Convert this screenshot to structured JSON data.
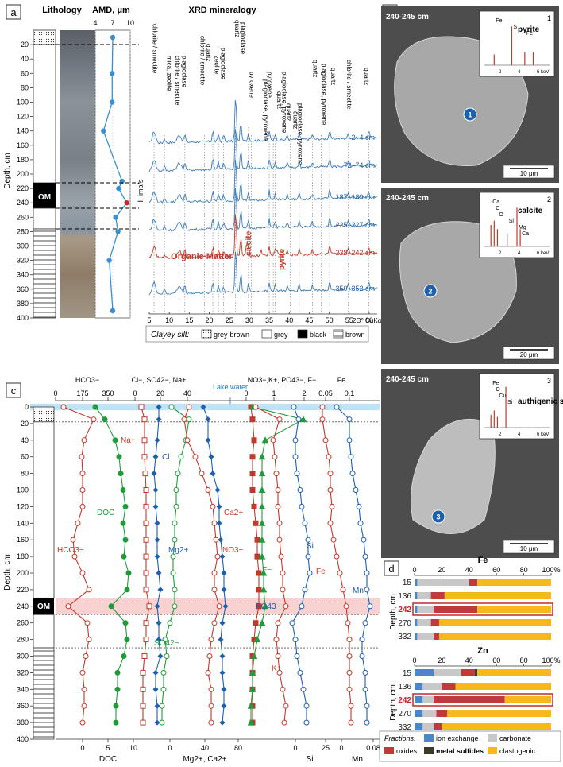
{
  "panel_a": {
    "letter": "a",
    "lithology_title": "Lithology",
    "amd_title": "AMD, μm",
    "amd_ticks": [
      "4",
      "7",
      "10"
    ],
    "xrd_title": "XRD mineralogy",
    "om_label": "OM",
    "depth_label": "Depth, cm",
    "depth_ticks": [
      "20",
      "40",
      "60",
      "80",
      "100",
      "120",
      "140",
      "160",
      "180",
      "200",
      "220",
      "240",
      "260",
      "280",
      "300",
      "320",
      "340",
      "360",
      "380",
      "400"
    ],
    "amd_data": {
      "depth": [
        10,
        60,
        100,
        140,
        210,
        220,
        240,
        260,
        280,
        320,
        390
      ],
      "amd": [
        7.0,
        6.9,
        6.9,
        5.4,
        8.6,
        8.0,
        9.4,
        7.5,
        7.9,
        6.4,
        7.0
      ],
      "highlight_index": 6
    },
    "xrd_ylabel": "I, imp/s",
    "xrd_xticks": [
      "5",
      "10",
      "15",
      "20",
      "25",
      "30",
      "35",
      "40",
      "45",
      "50",
      "55",
      "60",
      "2Θ° CuKα"
    ],
    "xrd_peaks": [
      "chlorite / smectite",
      "mica, zeolite",
      "chlorite / smectite",
      "plagioclase",
      "chlorite / smectite",
      "quartz",
      "zeolite",
      "plagioclase",
      "quartz",
      "plagioclase",
      "pyroxene",
      "plagioclase, pyroxene",
      "pyroxene",
      "quartz",
      "plagioclase, pyroxene",
      "quartz",
      "quartz",
      "plagioclase, pyroxene",
      "quartz",
      "plagioclase, pyroxene",
      "quartz",
      "chlorite / smectite",
      "quartz"
    ],
    "xrd_samples": [
      "2–4 cm",
      "72–74 cm",
      "187–189 cm",
      "225–227 cm",
      "238–242 cm",
      "350–352 cm"
    ],
    "xrd_annotations": {
      "organic": "Organic Matter",
      "calcite": "calcite",
      "pyrite": "pyrite"
    },
    "legend": {
      "title": "Clayey silt:",
      "items": [
        "grey-brown",
        "grey",
        "black",
        "brown"
      ]
    }
  },
  "panel_b": {
    "letter": "b",
    "images": [
      {
        "depth": "240-245 cm",
        "mineral": "pyrite",
        "num": "1",
        "scale": "10 μm",
        "spectrum_labels": [
          "Fe",
          "S",
          "Fe"
        ]
      },
      {
        "depth": "240-245 cm",
        "mineral": "calcite",
        "num": "2",
        "scale": "20 μm",
        "spectrum_labels": [
          "Ca",
          "C",
          "O",
          "Si",
          "Mg",
          "Ca"
        ]
      },
      {
        "depth": "240-245 cm",
        "mineral": "authigenic silica",
        "num": "3",
        "scale": "10 μm",
        "spectrum_labels": [
          "Fe",
          "O",
          "Cu",
          "Si"
        ]
      }
    ],
    "kev_ticks": [
      "2",
      "4",
      "6 keV"
    ]
  },
  "panel_c": {
    "letter": "c",
    "lake_water": "Lake water",
    "depth_label": "Depth, cm",
    "om_label": "OM",
    "depth_ticks": [
      "0",
      "20",
      "40",
      "60",
      "80",
      "100",
      "120",
      "140",
      "160",
      "180",
      "200",
      "220",
      "240",
      "260",
      "280",
      "300",
      "320",
      "340",
      "360",
      "380",
      "400"
    ],
    "top_headers": {
      "hco3": "HCO3−",
      "anions": "Cl−, SO42−, Na+",
      "no3": "NO3−,K+, PO43−, F−",
      "fe": "Fe"
    },
    "top_ticks": {
      "hco3": [
        "0",
        "175",
        "350"
      ],
      "cl": [
        "0",
        "20",
        "40"
      ],
      "no3": [
        "0",
        "1",
        "2"
      ],
      "fe": [
        "0.05",
        "0.1"
      ]
    },
    "bottom_ticks": {
      "doc": [
        "0",
        "5",
        "10"
      ],
      "mg": [
        "0",
        "40",
        "80"
      ],
      "si": [
        "0",
        "25"
      ],
      "mn": [
        "0",
        "0.08"
      ]
    },
    "bottom_labels": {
      "doc": "DOC",
      "mg": "Mg2+, Ca2+",
      "si": "Si",
      "mn": "Mn"
    },
    "curve_labels": [
      "Na+",
      "Cl",
      "DOC",
      "HCO3−",
      "Ca2+",
      "Mg2+",
      "NO3−",
      "F−",
      "PO43−",
      "K+",
      "SO42−",
      "Si",
      "Fe",
      "Mn"
    ]
  },
  "panel_d": {
    "letter": "d",
    "fe_title": "Fe",
    "zn_title": "Zn",
    "depth_label": "Depth, cm",
    "axis_ticks": [
      "0",
      "20",
      "40",
      "60",
      "80",
      "100%"
    ],
    "fe_rows": [
      {
        "depth": "15",
        "values": [
          2,
          38,
          6,
          0,
          54
        ]
      },
      {
        "depth": "136",
        "values": [
          2,
          10,
          10,
          0,
          78
        ]
      },
      {
        "depth": "242",
        "values": [
          2,
          12,
          32,
          0,
          54
        ]
      },
      {
        "depth": "270",
        "values": [
          2,
          10,
          6,
          0,
          82
        ]
      },
      {
        "depth": "332",
        "values": [
          2,
          12,
          4,
          0,
          82
        ]
      }
    ],
    "zn_rows": [
      {
        "depth": "15",
        "values": [
          14,
          20,
          10,
          2,
          54
        ]
      },
      {
        "depth": "136",
        "values": [
          6,
          14,
          10,
          0,
          70
        ]
      },
      {
        "depth": "242",
        "values": [
          6,
          8,
          52,
          0,
          34
        ]
      },
      {
        "depth": "270",
        "values": [
          6,
          10,
          8,
          0,
          76
        ]
      },
      {
        "depth": "332",
        "values": [
          6,
          8,
          6,
          0,
          80
        ]
      }
    ],
    "highlight_depth": "242",
    "legend": {
      "title": "Fractions:",
      "items": [
        "ion exchange",
        "carbonate",
        "oxides",
        "metal sulfides",
        "clastogenic"
      ]
    },
    "colors": [
      "#4a86c8",
      "#c8c8c8",
      "#c0393b",
      "#3b3b2a",
      "#f6b91c"
    ]
  }
}
